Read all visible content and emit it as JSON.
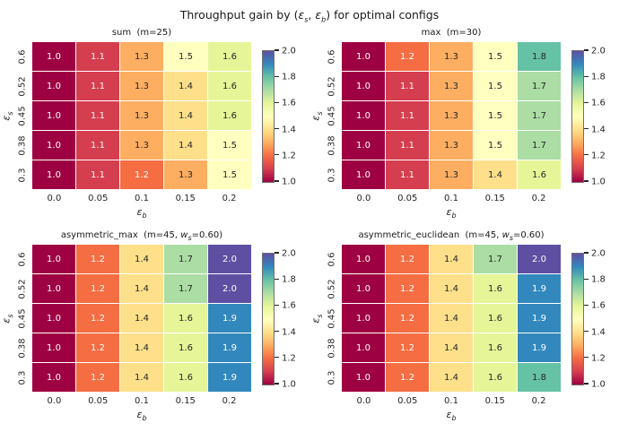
{
  "figure_title": {
    "prefix": "Throughput gain by (",
    "eps1": "ε",
    "sub_s": "s",
    "sep": ", ",
    "eps2": "ε",
    "sub_b": "b",
    "suffix": ") for optimal configs"
  },
  "axes": {
    "x_symbol": "ε",
    "x_subscript": "b",
    "y_symbol": "ε",
    "y_subscript": "s"
  },
  "colormap": {
    "name": "Spectral",
    "stops": [
      "#9e0142",
      "#d53e4f",
      "#f46d43",
      "#fdae61",
      "#fee08b",
      "#ffffbf",
      "#e6f598",
      "#abdda4",
      "#66c2a5",
      "#3288bd",
      "#5e4fa2"
    ],
    "dark_text_color": "#262626",
    "light_text_color": "#ffffff"
  },
  "colorbar": {
    "vmin": 1.0,
    "vmax": 2.0,
    "tick_values": [
      1.0,
      1.2,
      1.4,
      1.6,
      1.8,
      2.0
    ],
    "tick_labels": [
      "1.0",
      "1.2",
      "1.4",
      "1.6",
      "1.8",
      "2.0"
    ]
  },
  "chart_data": [
    {
      "type": "heatmap",
      "title_parts": {
        "prefix": "sum  (m=25)",
        "w": "",
        "w_sub": "",
        "suffix": ""
      },
      "x_tick_labels": [
        "0.0",
        "0.05",
        "0.1",
        "0.15",
        "0.2"
      ],
      "y_tick_labels": [
        "0.6",
        "0.52",
        "0.45",
        "0.38",
        "0.3"
      ],
      "vmin": 1.0,
      "vmax": 2.0,
      "values": [
        [
          1.0,
          1.1,
          1.3,
          1.5,
          1.6
        ],
        [
          1.0,
          1.1,
          1.3,
          1.4,
          1.6
        ],
        [
          1.0,
          1.1,
          1.3,
          1.4,
          1.6
        ],
        [
          1.0,
          1.1,
          1.3,
          1.4,
          1.5
        ],
        [
          1.0,
          1.1,
          1.2,
          1.3,
          1.5
        ]
      ]
    },
    {
      "type": "heatmap",
      "title_parts": {
        "prefix": "max  (m=30)",
        "w": "",
        "w_sub": "",
        "suffix": ""
      },
      "x_tick_labels": [
        "0.0",
        "0.05",
        "0.1",
        "0.15",
        "0.2"
      ],
      "y_tick_labels": [
        "0.6",
        "0.52",
        "0.45",
        "0.38",
        "0.3"
      ],
      "vmin": 1.0,
      "vmax": 2.0,
      "values": [
        [
          1.0,
          1.2,
          1.3,
          1.5,
          1.8
        ],
        [
          1.0,
          1.1,
          1.3,
          1.5,
          1.7
        ],
        [
          1.0,
          1.1,
          1.3,
          1.5,
          1.7
        ],
        [
          1.0,
          1.1,
          1.3,
          1.5,
          1.7
        ],
        [
          1.0,
          1.1,
          1.3,
          1.4,
          1.6
        ]
      ]
    },
    {
      "type": "heatmap",
      "title_parts": {
        "prefix": "asymmetric_max  (m=45, ",
        "w": "w",
        "w_sub": "s",
        "suffix": "=0.60)"
      },
      "x_tick_labels": [
        "0.0",
        "0.05",
        "0.1",
        "0.15",
        "0.2"
      ],
      "y_tick_labels": [
        "0.6",
        "0.52",
        "0.45",
        "0.38",
        "0.3"
      ],
      "vmin": 1.0,
      "vmax": 2.0,
      "values": [
        [
          1.0,
          1.2,
          1.4,
          1.7,
          2.0
        ],
        [
          1.0,
          1.2,
          1.4,
          1.7,
          2.0
        ],
        [
          1.0,
          1.2,
          1.4,
          1.6,
          1.9
        ],
        [
          1.0,
          1.2,
          1.4,
          1.6,
          1.9
        ],
        [
          1.0,
          1.2,
          1.4,
          1.6,
          1.9
        ]
      ]
    },
    {
      "type": "heatmap",
      "title_parts": {
        "prefix": "asymmetric_euclidean  (m=45, ",
        "w": "w",
        "w_sub": "s",
        "suffix": "=0.60)"
      },
      "x_tick_labels": [
        "0.0",
        "0.05",
        "0.1",
        "0.15",
        "0.2"
      ],
      "y_tick_labels": [
        "0.6",
        "0.52",
        "0.45",
        "0.38",
        "0.3"
      ],
      "vmin": 1.0,
      "vmax": 2.0,
      "values": [
        [
          1.0,
          1.2,
          1.4,
          1.7,
          2.0
        ],
        [
          1.0,
          1.2,
          1.4,
          1.6,
          1.9
        ],
        [
          1.0,
          1.2,
          1.4,
          1.6,
          1.9
        ],
        [
          1.0,
          1.2,
          1.4,
          1.6,
          1.9
        ],
        [
          1.0,
          1.2,
          1.4,
          1.6,
          1.8
        ]
      ]
    }
  ]
}
